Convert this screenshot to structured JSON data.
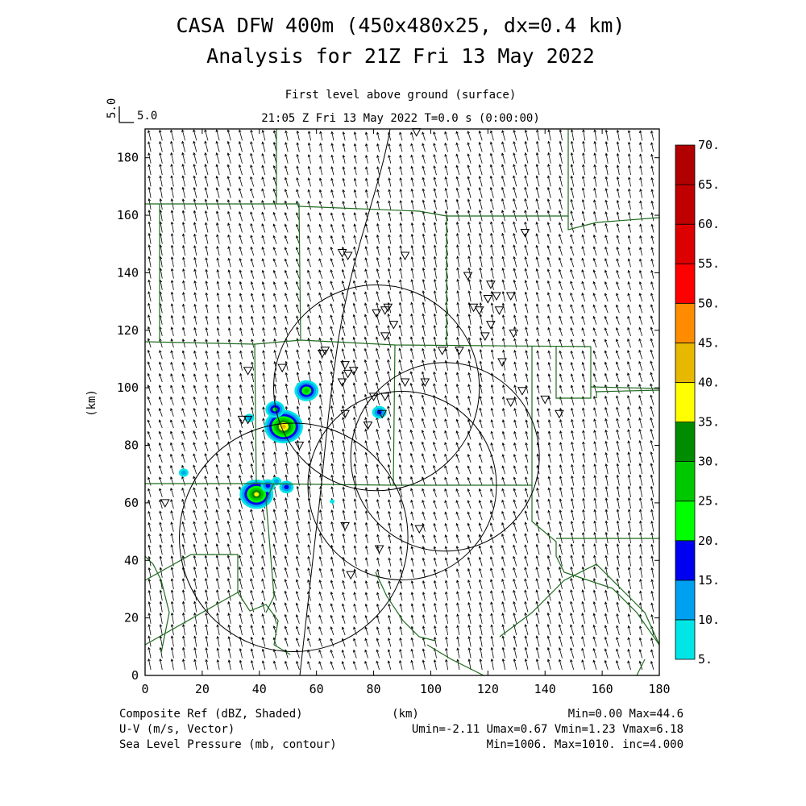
{
  "header": {
    "title_line1": "CASA DFW 400m (450x480x25, dx=0.4 km)",
    "title_line2": "Analysis for 21Z Fri 13 May 2022",
    "level": "First level above ground (surface)",
    "valid_time": "21:05 Z Fri 13 May 2022    T=0.0 s (0:00:00)",
    "vector_ref_value": "5.0",
    "vector_ref_label": "5.0"
  },
  "footer": {
    "field1": "Composite Ref (dBZ, Shaded)",
    "field1_stats": "Min=0.00 Max=44.6",
    "field2": "U-V (m/s, Vector)",
    "field2_stats": "Umin=-2.11 Umax=0.67 Vmin=1.23 Vmax=6.18",
    "field3": "Sea Level Pressure (mb, contour)",
    "field3_stats": "Min=1006. Max=1010. inc=4.000",
    "xunit": "(km)"
  },
  "chart_data": {
    "type": "heatmap",
    "title": "CASA DFW 400m (450x480x25, dx=0.4 km)",
    "xlabel": "(km)",
    "ylabel": "(km)",
    "xlim": [
      0,
      180
    ],
    "ylim": [
      0,
      190
    ],
    "x_ticks": [
      "0",
      "20",
      "40",
      "60",
      "80",
      "100",
      "120",
      "140",
      "160",
      "180"
    ],
    "y_ticks": [
      "0",
      "20",
      "40",
      "60",
      "80",
      "100",
      "120",
      "140",
      "160",
      "180"
    ],
    "colorbar": {
      "levels": [
        "5.",
        "10.",
        "15.",
        "20.",
        "25.",
        "30.",
        "35.",
        "40.",
        "45.",
        "50.",
        "55.",
        "60.",
        "65.",
        "70."
      ],
      "colors": [
        "#00e5e5",
        "#00a0f0",
        "#0000f0",
        "#00ff00",
        "#00c800",
        "#008c00",
        "#ffff00",
        "#e6b800",
        "#ff8c00",
        "#ff0000",
        "#dd0000",
        "#c00000",
        "#b00000",
        "#ff00ff",
        "#ff00ff"
      ]
    },
    "radar_rings": [
      {
        "x": 105,
        "y": 76,
        "r": 33
      },
      {
        "x": 81,
        "y": 100,
        "r": 36
      },
      {
        "x": 90,
        "y": 66,
        "r": 33
      },
      {
        "x": 52,
        "y": 48,
        "r": 40
      }
    ],
    "echoes": [
      {
        "x": 48.5,
        "y": 86.5,
        "dbz": 40
      },
      {
        "x": 45.5,
        "y": 92.5,
        "dbz": 22
      },
      {
        "x": 56.5,
        "y": 99,
        "dbz": 28
      },
      {
        "x": 82,
        "y": 91.5,
        "dbz": 15
      },
      {
        "x": 39,
        "y": 63,
        "dbz": 38
      },
      {
        "x": 43,
        "y": 66,
        "dbz": 15
      },
      {
        "x": 49.5,
        "y": 65.5,
        "dbz": 15
      },
      {
        "x": 46,
        "y": 67.5,
        "dbz": 10
      },
      {
        "x": 13.5,
        "y": 70.5,
        "dbz": 10
      },
      {
        "x": 36.5,
        "y": 89.5,
        "dbz": 10
      },
      {
        "x": 65.5,
        "y": 60.5,
        "dbz": 8
      }
    ],
    "stations": [
      [
        69,
        147
      ],
      [
        71,
        146
      ],
      [
        91,
        146
      ],
      [
        95,
        189
      ],
      [
        133,
        154
      ],
      [
        113,
        139
      ],
      [
        121,
        136
      ],
      [
        123,
        132
      ],
      [
        128,
        132
      ],
      [
        120,
        131
      ],
      [
        115,
        128
      ],
      [
        124,
        127
      ],
      [
        117,
        127
      ],
      [
        84,
        127
      ],
      [
        85,
        128
      ],
      [
        81,
        126
      ],
      [
        87,
        122
      ],
      [
        121,
        122
      ],
      [
        119,
        118
      ],
      [
        129,
        119
      ],
      [
        84,
        118
      ],
      [
        63,
        113
      ],
      [
        104,
        113
      ],
      [
        110,
        113
      ],
      [
        62,
        112
      ],
      [
        125,
        109
      ],
      [
        70,
        108
      ],
      [
        71,
        105
      ],
      [
        73,
        106
      ],
      [
        36,
        106
      ],
      [
        48,
        107
      ],
      [
        91,
        102
      ],
      [
        98,
        102
      ],
      [
        69,
        102
      ],
      [
        132,
        99
      ],
      [
        80,
        97
      ],
      [
        84,
        97
      ],
      [
        140,
        96
      ],
      [
        128,
        95
      ],
      [
        145,
        91
      ],
      [
        34,
        89
      ],
      [
        36,
        89
      ],
      [
        70,
        91
      ],
      [
        83,
        91
      ],
      [
        78,
        87
      ],
      [
        54,
        80
      ],
      [
        96,
        51
      ],
      [
        82,
        44
      ],
      [
        70,
        52
      ],
      [
        72,
        35
      ],
      [
        7,
        60
      ]
    ],
    "wind_field": {
      "u_min": -2.11,
      "u_max": 0.67,
      "v_min": 1.23,
      "v_max": 6.18,
      "grid_km": 4.0,
      "ref_vector_ms": 5.0
    }
  }
}
